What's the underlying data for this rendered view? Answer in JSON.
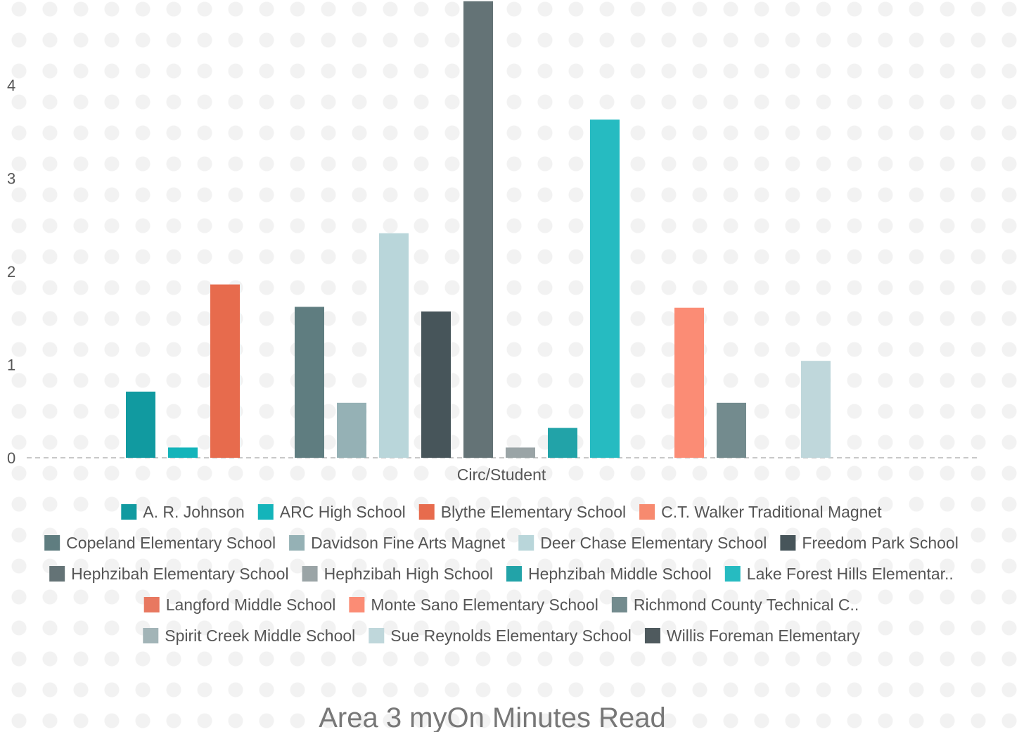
{
  "chart_data": {
    "type": "bar",
    "title": "Area 3 myOn Minutes Read",
    "xlabel": "Circ/Student",
    "ylabel": "",
    "ylim": [
      0,
      4.9
    ],
    "yticks": [
      "0",
      "1",
      "2",
      "3",
      "4"
    ],
    "categories": [
      "Circ/Student"
    ],
    "legend_position": "bottom",
    "series": [
      {
        "name": "A. R. Johnson",
        "values": [
          0.71
        ],
        "color": "#119aa0"
      },
      {
        "name": "ARC High School",
        "values": [
          0.11
        ],
        "color": "#14b4ba"
      },
      {
        "name": "Blythe Elementary School",
        "values": [
          1.86
        ],
        "color": "#e76b4d"
      },
      {
        "name": "C.T. Walker Traditional Magnet",
        "values": [
          0
        ],
        "color": "#f78a6f"
      },
      {
        "name": "Copeland Elementary School",
        "values": [
          1.62
        ],
        "color": "#5f7d80"
      },
      {
        "name": "Davidson Fine Arts Magnet",
        "values": [
          0.59
        ],
        "color": "#95b1b5"
      },
      {
        "name": "Deer Chase Elementary School",
        "values": [
          2.41
        ],
        "color": "#b9d6da"
      },
      {
        "name": "Freedom Park School",
        "values": [
          1.57
        ],
        "color": "#47555a"
      },
      {
        "name": "Hephzibah Elementary School",
        "values": [
          4.9
        ],
        "color": "#647376"
      },
      {
        "name": "Hephzibah High School",
        "values": [
          0.11
        ],
        "color": "#9aa4a6"
      },
      {
        "name": "Hephzibah Middle School",
        "values": [
          0.32
        ],
        "color": "#22a3a8"
      },
      {
        "name": "Lake Forest Hills Elementar..",
        "values": [
          3.63
        ],
        "color": "#26bbc1"
      },
      {
        "name": "Langford Middle School",
        "values": [
          0
        ],
        "color": "#e87860"
      },
      {
        "name": "Monte Sano Elementary School",
        "values": [
          1.61
        ],
        "color": "#fb8c75"
      },
      {
        "name": "Richmond County Technical C..",
        "values": [
          0.59
        ],
        "color": "#738b8e"
      },
      {
        "name": "Spirit Creek Middle School",
        "values": [
          0
        ],
        "color": "#a2b4b7"
      },
      {
        "name": "Sue Reynolds Elementary School",
        "values": [
          1.04
        ],
        "color": "#bfd7db"
      },
      {
        "name": "Willis Foreman Elementary",
        "values": [
          0
        ],
        "color": "#4f5a5e"
      }
    ],
    "legend_rows": [
      [
        "A. R. Johnson",
        "ARC High School",
        "Blythe Elementary School",
        "C.T. Walker Traditional Magnet"
      ],
      [
        "Copeland Elementary School",
        "Davidson Fine Arts Magnet",
        "Deer Chase Elementary School",
        "Freedom Park School"
      ],
      [
        "Hephzibah Elementary School",
        "Hephzibah High School",
        "Hephzibah Middle School",
        "Lake Forest Hills Elementar.."
      ],
      [
        "Langford Middle School",
        "Monte Sano Elementary School",
        "Richmond County Technical C.."
      ],
      [
        "Spirit Creek Middle School",
        "Sue Reynolds Elementary School",
        "Willis Foreman Elementary"
      ]
    ]
  }
}
